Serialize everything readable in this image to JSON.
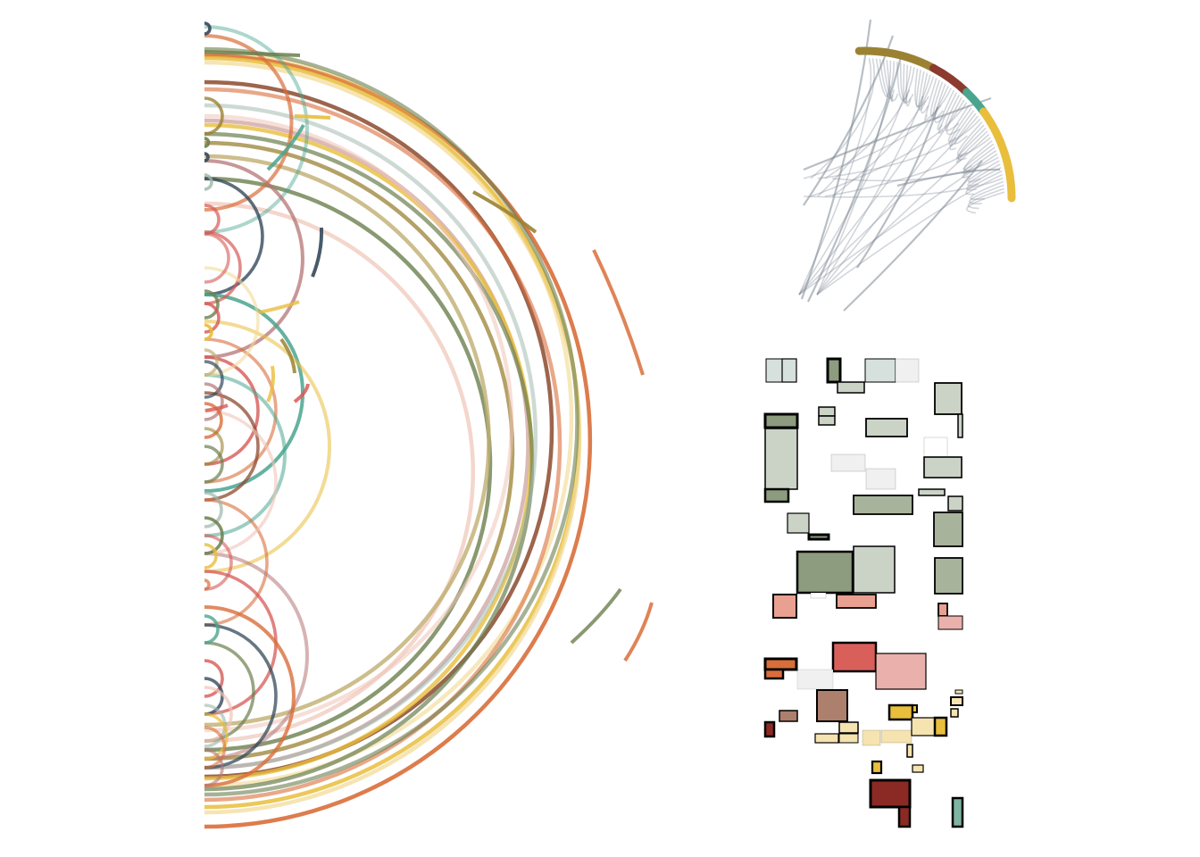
{
  "palette": {
    "arc_colors": [
      "#E8BE3C",
      "#8C4A2E",
      "#6B7F4E",
      "#D96E3A",
      "#4AA58F",
      "#D65A56",
      "#EFC4B7",
      "#9B8233",
      "#34495A",
      "#B47474",
      "#F3DB98",
      "#C1AE70",
      "#9CB5AA"
    ],
    "ring_segments": [
      "#9B8233",
      "#8C3B2E",
      "#4AA58F",
      "#E8BE3C"
    ],
    "bundle_stroke": "#7E8894",
    "rect_fills": [
      "#8D9B7E",
      "#A8B39B",
      "#CBD3C6",
      "#D6E0DC",
      "#E8A090",
      "#D9605A",
      "#EAB1AC",
      "#AD7F6D",
      "#D96E3A",
      "#F5E3B0",
      "#E8BE3C",
      "#8B2A24",
      "#7FB3A2",
      "#F0F0F0",
      "#FFFFFF"
    ]
  },
  "panels": {
    "arc_diagram": {
      "type": "semicircular-arc-diagram",
      "links": 96
    },
    "radial_bundle": {
      "type": "hierarchical-edge-bundle",
      "segments": 4
    },
    "treemap_tiles": {
      "type": "rectangle-packing",
      "groups": 5
    }
  }
}
